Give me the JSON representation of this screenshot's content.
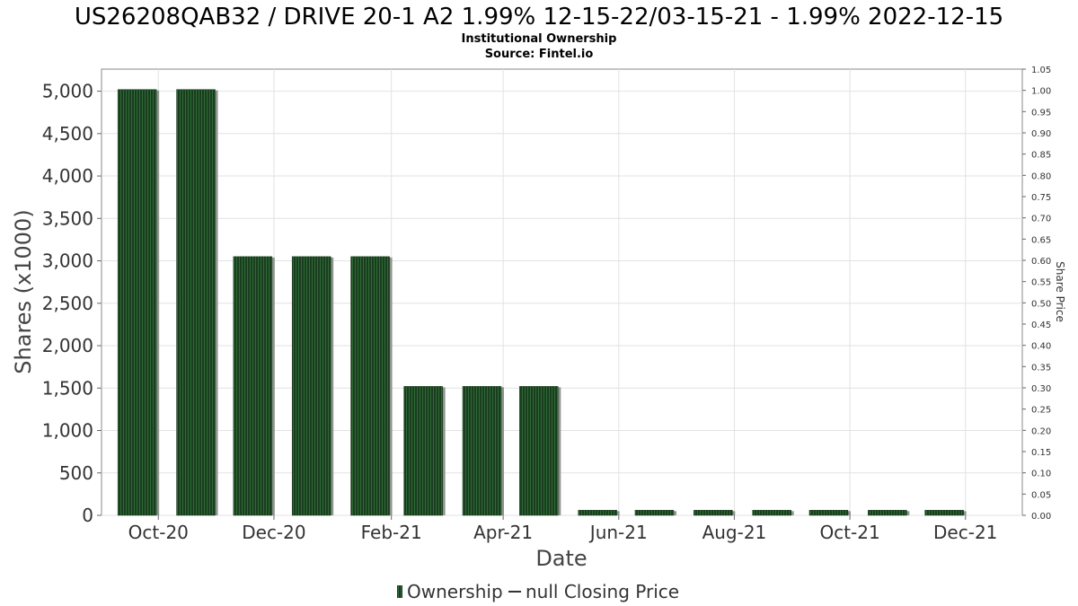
{
  "chart_data": {
    "type": "bar",
    "title": "US26208QAB32 / DRIVE 20-1 A2 1.99% 12-15-22/03-15-21 - 1.99% 2022-12-15",
    "subtitle": "Institutional Ownership",
    "source": "Source: Fintel.io",
    "xlabel": "Date",
    "ylabel": "Shares (x1000)",
    "y2label": "Share Price",
    "ylim": [
      0,
      5260
    ],
    "y2lim": [
      0,
      1.05
    ],
    "yticks": [
      0,
      500,
      1000,
      1500,
      2000,
      2500,
      3000,
      3500,
      4000,
      4500,
      5000
    ],
    "ytick_labels": [
      "0",
      "500",
      "1,000",
      "1,500",
      "2,000",
      "2,500",
      "3,000",
      "3,500",
      "4,000",
      "4,500",
      "5,000"
    ],
    "y2ticks": [
      0,
      0.05,
      0.1,
      0.15,
      0.2,
      0.25,
      0.3,
      0.35,
      0.4,
      0.45,
      0.5,
      0.55,
      0.6,
      0.65,
      0.7,
      0.75,
      0.8,
      0.85,
      0.9,
      0.95,
      1.0,
      1.05
    ],
    "y2tick_labels": [
      "0.00",
      "0.05",
      "0.10",
      "0.15",
      "0.20",
      "0.25",
      "0.30",
      "0.35",
      "0.40",
      "0.45",
      "0.50",
      "0.55",
      "0.60",
      "0.65",
      "0.70",
      "0.75",
      "0.80",
      "0.85",
      "0.90",
      "0.95",
      "1.00",
      "1.05"
    ],
    "xlim": [
      "2020-09-01",
      "2021-12-31"
    ],
    "xticks": [
      "2020-10-01",
      "2020-12-01",
      "2021-02-01",
      "2021-04-01",
      "2021-06-01",
      "2021-08-01",
      "2021-10-01",
      "2021-12-01"
    ],
    "xtick_labels": [
      "Oct-20",
      "Dec-20",
      "Feb-21",
      "Apr-21",
      "Jun-21",
      "Aug-21",
      "Oct-21",
      "Dec-21"
    ],
    "grid": true,
    "legend_position": "bottom",
    "series": [
      {
        "name": "Ownership",
        "color": "#1a3d1f",
        "x": [
          "2020-09-30",
          "2020-10-31",
          "2020-11-30",
          "2020-12-31",
          "2021-01-31",
          "2021-02-28",
          "2021-03-31",
          "2021-04-30",
          "2021-05-31",
          "2021-06-30",
          "2021-07-31",
          "2021-08-31",
          "2021-09-30",
          "2021-10-31",
          "2021-11-30"
        ],
        "values": [
          5020,
          5020,
          3050,
          3050,
          3050,
          1520,
          1520,
          1520,
          60,
          60,
          60,
          60,
          60,
          60,
          60
        ]
      },
      {
        "name": "null Closing Price",
        "color": "#333333",
        "values": []
      }
    ]
  }
}
